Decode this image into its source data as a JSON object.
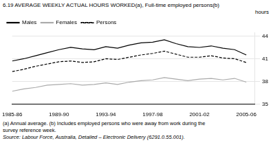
{
  "chart_data": {
    "type": "line",
    "title": "6.19  AVERAGE WEEKLY ACTUAL HOURS WORKED(a), Full-time employed persons(b)",
    "ylabel": "hours",
    "annotations": [
      "(a) Annual average.  (b) Includes employed persons who were away from work during the",
      "survey reference week.",
      "Source: Labour Force, Australia, Detailed – Electronic Delivery (6291.0.55.001)."
    ],
    "x": [
      1985.5,
      1986.5,
      1987.5,
      1988.5,
      1989.5,
      1990.5,
      1991.5,
      1992.5,
      1993.5,
      1994.5,
      1995.5,
      1996.5,
      1997.5,
      1998.5,
      1999.5,
      2000.5,
      2001.5,
      2002.5,
      2003.5,
      2004.5,
      2005.5
    ],
    "series": [
      {
        "name": "Males",
        "color": "#000000",
        "line_style": "solid",
        "values": [
          40.7,
          41.0,
          41.4,
          41.8,
          42.2,
          42.5,
          42.3,
          42.2,
          42.6,
          42.4,
          42.8,
          43.1,
          43.2,
          43.5,
          43.0,
          42.6,
          42.5,
          42.7,
          42.4,
          42.2,
          41.5
        ]
      },
      {
        "name": "Females",
        "color": "#aaaaaa",
        "line_style": "solid",
        "values": [
          36.7,
          37.0,
          37.2,
          37.5,
          37.6,
          37.7,
          37.5,
          37.6,
          37.8,
          37.6,
          37.9,
          38.1,
          38.2,
          38.5,
          38.3,
          38.1,
          38.3,
          38.4,
          38.2,
          38.4,
          37.9
        ]
      },
      {
        "name": "Persons",
        "color": "#000000",
        "line_style": "dashed",
        "values": [
          39.3,
          39.6,
          40.0,
          40.3,
          40.6,
          40.7,
          40.5,
          40.6,
          41.0,
          40.9,
          41.2,
          41.5,
          41.7,
          42.0,
          41.6,
          41.2,
          41.2,
          41.4,
          41.1,
          41.0,
          40.5
        ]
      }
    ],
    "xlim": [
      1985.5,
      2006.2
    ],
    "xticks": [
      {
        "value": 1985.5,
        "label": "1985-86"
      },
      {
        "value": 1989.5,
        "label": "1989-90"
      },
      {
        "value": 1993.5,
        "label": "1993-94"
      },
      {
        "value": 1997.5,
        "label": "1997-98"
      },
      {
        "value": 2001.5,
        "label": "2001-02"
      },
      {
        "value": 2005.5,
        "label": "2005-06"
      }
    ],
    "ylim": [
      35,
      44.5
    ],
    "yticks": [
      35,
      38,
      41,
      44
    ],
    "grid": "y",
    "legend": "upper left"
  }
}
